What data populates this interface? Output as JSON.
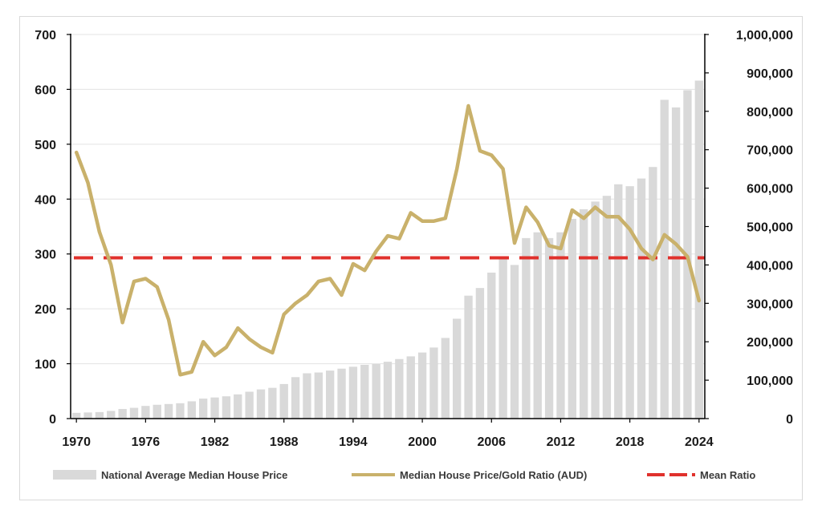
{
  "chart_data": {
    "type": "bar+line",
    "x": [
      1970,
      1971,
      1972,
      1973,
      1974,
      1975,
      1976,
      1977,
      1978,
      1979,
      1980,
      1981,
      1982,
      1983,
      1984,
      1985,
      1986,
      1987,
      1988,
      1989,
      1990,
      1991,
      1992,
      1993,
      1994,
      1995,
      1996,
      1997,
      1998,
      1999,
      2000,
      2001,
      2002,
      2003,
      2004,
      2005,
      2006,
      2007,
      2008,
      2009,
      2010,
      2011,
      2012,
      2013,
      2014,
      2015,
      2016,
      2017,
      2018,
      2019,
      2020,
      2021,
      2022,
      2023,
      2024
    ],
    "x_ticks": [
      "1970",
      "1976",
      "1982",
      "1988",
      "1994",
      "2000",
      "2006",
      "2012",
      "2018",
      "2024"
    ],
    "y_left": {
      "min": 0,
      "max": 700,
      "ticks": [
        "0",
        "100",
        "200",
        "300",
        "400",
        "500",
        "600",
        "700"
      ]
    },
    "y_right": {
      "min": 0,
      "max": 1000000,
      "ticks": [
        "0",
        "100,000",
        "200,000",
        "300,000",
        "400,000",
        "500,000",
        "600,000",
        "700,000",
        "800,000",
        "900,000",
        "1,000,000"
      ]
    },
    "series": [
      {
        "name": "National Average Median House Price",
        "kind": "bar",
        "axis": "right",
        "color": "#d9d9d9",
        "values": [
          15000,
          16000,
          17000,
          20000,
          25000,
          28000,
          33000,
          36000,
          38000,
          40000,
          45000,
          52000,
          55000,
          58000,
          63000,
          70000,
          76000,
          80000,
          90000,
          108000,
          118000,
          120000,
          125000,
          130000,
          135000,
          140000,
          142000,
          148000,
          155000,
          162000,
          172000,
          185000,
          210000,
          260000,
          320000,
          340000,
          380000,
          420000,
          400000,
          470000,
          485000,
          470000,
          485000,
          520000,
          545000,
          565000,
          580000,
          610000,
          605000,
          625000,
          655000,
          830000,
          810000,
          855000,
          880000
        ]
      },
      {
        "name": "Median House Price/Gold Ratio (AUD)",
        "kind": "line",
        "axis": "left",
        "color": "#c9b16b",
        "values": [
          485,
          430,
          340,
          280,
          175,
          250,
          255,
          240,
          180,
          80,
          85,
          140,
          115,
          130,
          165,
          145,
          130,
          120,
          190,
          210,
          225,
          250,
          255,
          225,
          282,
          270,
          305,
          333,
          328,
          375,
          360,
          360,
          365,
          455,
          570,
          488,
          480,
          455,
          320,
          385,
          358,
          315,
          310,
          380,
          365,
          385,
          368,
          368,
          345,
          310,
          290,
          335,
          318,
          295,
          215
        ]
      },
      {
        "name": "Mean Ratio",
        "kind": "dashed-line",
        "axis": "left",
        "color": "#e0312c",
        "value": 293
      }
    ],
    "grid": true,
    "legend_position": "bottom"
  },
  "legend": {
    "bar_label": "National Average Median House Price",
    "line_label": "Median House Price/Gold Ratio (AUD)",
    "mean_label": "Mean Ratio"
  }
}
